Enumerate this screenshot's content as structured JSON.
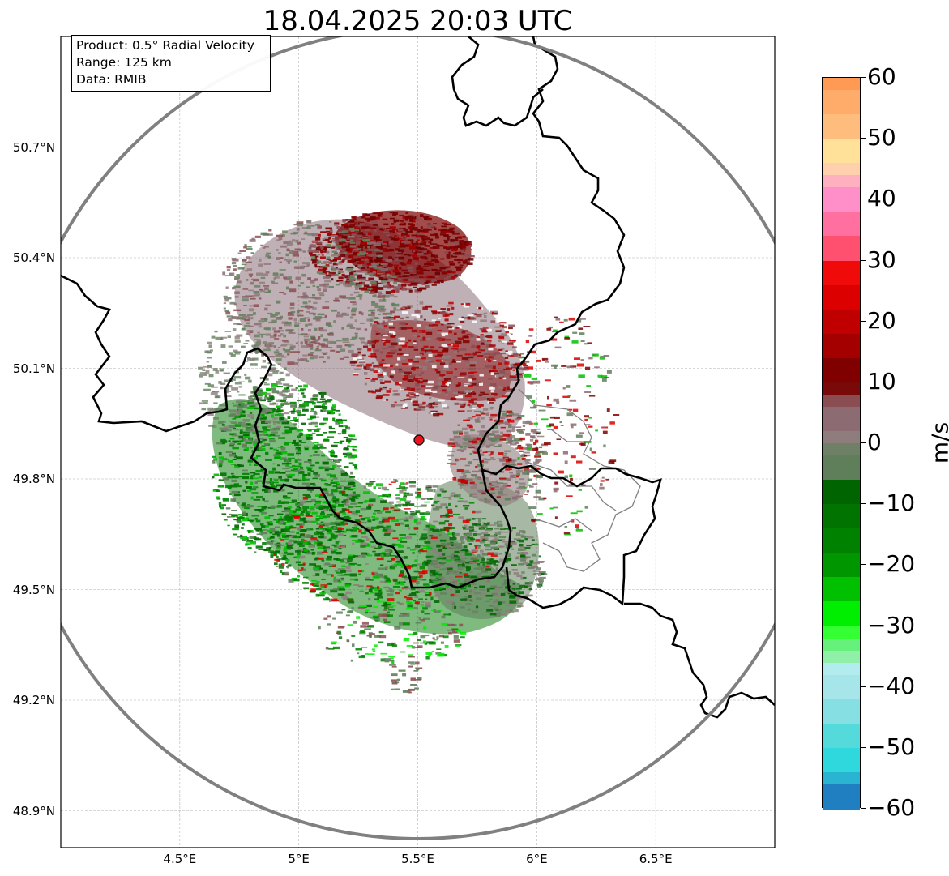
{
  "title": "18.04.2025 20:03 UTC",
  "info": {
    "product": "Product: 0.5° Radial Velocity",
    "range": "Range: 125 km",
    "source": "Data: RMIB"
  },
  "map": {
    "lon_range": [
      4.0,
      7.0
    ],
    "lat_range": [
      48.8,
      51.0
    ],
    "radar_site": {
      "lon": 5.5,
      "lat": 49.91,
      "color": "#e8141e"
    },
    "range_ring_color": "#808080",
    "border_color": "#000000",
    "admin_border_color": "#808080",
    "gridlines": true,
    "lat_ticks": [
      {
        "value": 50.7,
        "label": "50.7°N"
      },
      {
        "value": 50.4,
        "label": "50.4°N"
      },
      {
        "value": 50.1,
        "label": "50.1°N"
      },
      {
        "value": 49.8,
        "label": "49.8°N"
      },
      {
        "value": 49.5,
        "label": "49.5°N"
      },
      {
        "value": 49.2,
        "label": "49.2°N"
      },
      {
        "value": 48.9,
        "label": "48.9°N"
      }
    ],
    "lon_ticks": [
      {
        "value": 4.5,
        "label": "4.5°E"
      },
      {
        "value": 5.0,
        "label": "5°E"
      },
      {
        "value": 5.5,
        "label": "5.5°E"
      },
      {
        "value": 6.0,
        "label": "6°E"
      },
      {
        "value": 6.5,
        "label": "6.5°E"
      }
    ]
  },
  "colorbar": {
    "unit": "m/s",
    "min": -60,
    "max": 60,
    "ticks": [
      {
        "value": 60,
        "label": "60"
      },
      {
        "value": 50,
        "label": "50"
      },
      {
        "value": 40,
        "label": "40"
      },
      {
        "value": 30,
        "label": "30"
      },
      {
        "value": 20,
        "label": "20"
      },
      {
        "value": 10,
        "label": "10"
      },
      {
        "value": 0,
        "label": "0"
      },
      {
        "value": -10,
        "label": "−10"
      },
      {
        "value": -20,
        "label": "−20"
      },
      {
        "value": -30,
        "label": "−30"
      },
      {
        "value": -40,
        "label": "−40"
      },
      {
        "value": -50,
        "label": "−50"
      },
      {
        "value": -60,
        "label": "−60"
      }
    ],
    "stops": [
      {
        "from": 58,
        "to": 60,
        "color": "#ff9a55"
      },
      {
        "from": 54,
        "to": 58,
        "color": "#ffab6a"
      },
      {
        "from": 50,
        "to": 54,
        "color": "#ffbd7d"
      },
      {
        "from": 46,
        "to": 50,
        "color": "#ffe19a"
      },
      {
        "from": 44,
        "to": 46,
        "color": "#ffd0ae"
      },
      {
        "from": 42,
        "to": 44,
        "color": "#ffb0c0"
      },
      {
        "from": 38,
        "to": 42,
        "color": "#ff8fc8"
      },
      {
        "from": 34,
        "to": 38,
        "color": "#ff6f9f"
      },
      {
        "from": 30,
        "to": 34,
        "color": "#ff5070"
      },
      {
        "from": 26,
        "to": 30,
        "color": "#f00a0a"
      },
      {
        "from": 22,
        "to": 26,
        "color": "#dc0000"
      },
      {
        "from": 18,
        "to": 22,
        "color": "#c00000"
      },
      {
        "from": 14,
        "to": 18,
        "color": "#a40000"
      },
      {
        "from": 10,
        "to": 14,
        "color": "#800000"
      },
      {
        "from": 8,
        "to": 10,
        "color": "#7a0a0a"
      },
      {
        "from": 6,
        "to": 8,
        "color": "#8a4e52"
      },
      {
        "from": 2,
        "to": 6,
        "color": "#8c6b72"
      },
      {
        "from": 0,
        "to": 2,
        "color": "#8f7d7d"
      },
      {
        "from": -2,
        "to": 0,
        "color": "#6e8066"
      },
      {
        "from": -6,
        "to": -2,
        "color": "#5f7f5a"
      },
      {
        "from": -10,
        "to": -6,
        "color": "#006400"
      },
      {
        "from": -14,
        "to": -10,
        "color": "#007300"
      },
      {
        "from": -18,
        "to": -14,
        "color": "#008200"
      },
      {
        "from": -22,
        "to": -18,
        "color": "#009600"
      },
      {
        "from": -26,
        "to": -22,
        "color": "#00c000"
      },
      {
        "from": -30,
        "to": -26,
        "color": "#00ee00"
      },
      {
        "from": -32,
        "to": -30,
        "color": "#33ff33"
      },
      {
        "from": -34,
        "to": -32,
        "color": "#66f27a"
      },
      {
        "from": -36,
        "to": -34,
        "color": "#90f0a8"
      },
      {
        "from": -38,
        "to": -36,
        "color": "#b2ecef"
      },
      {
        "from": -42,
        "to": -38,
        "color": "#a6e6ea"
      },
      {
        "from": -46,
        "to": -42,
        "color": "#86dfe3"
      },
      {
        "from": -50,
        "to": -46,
        "color": "#55dadc"
      },
      {
        "from": -54,
        "to": -50,
        "color": "#2fd8dd"
      },
      {
        "from": -56,
        "to": -54,
        "color": "#29b5d2"
      },
      {
        "from": -60,
        "to": -56,
        "color": "#1f7fc0"
      }
    ]
  }
}
